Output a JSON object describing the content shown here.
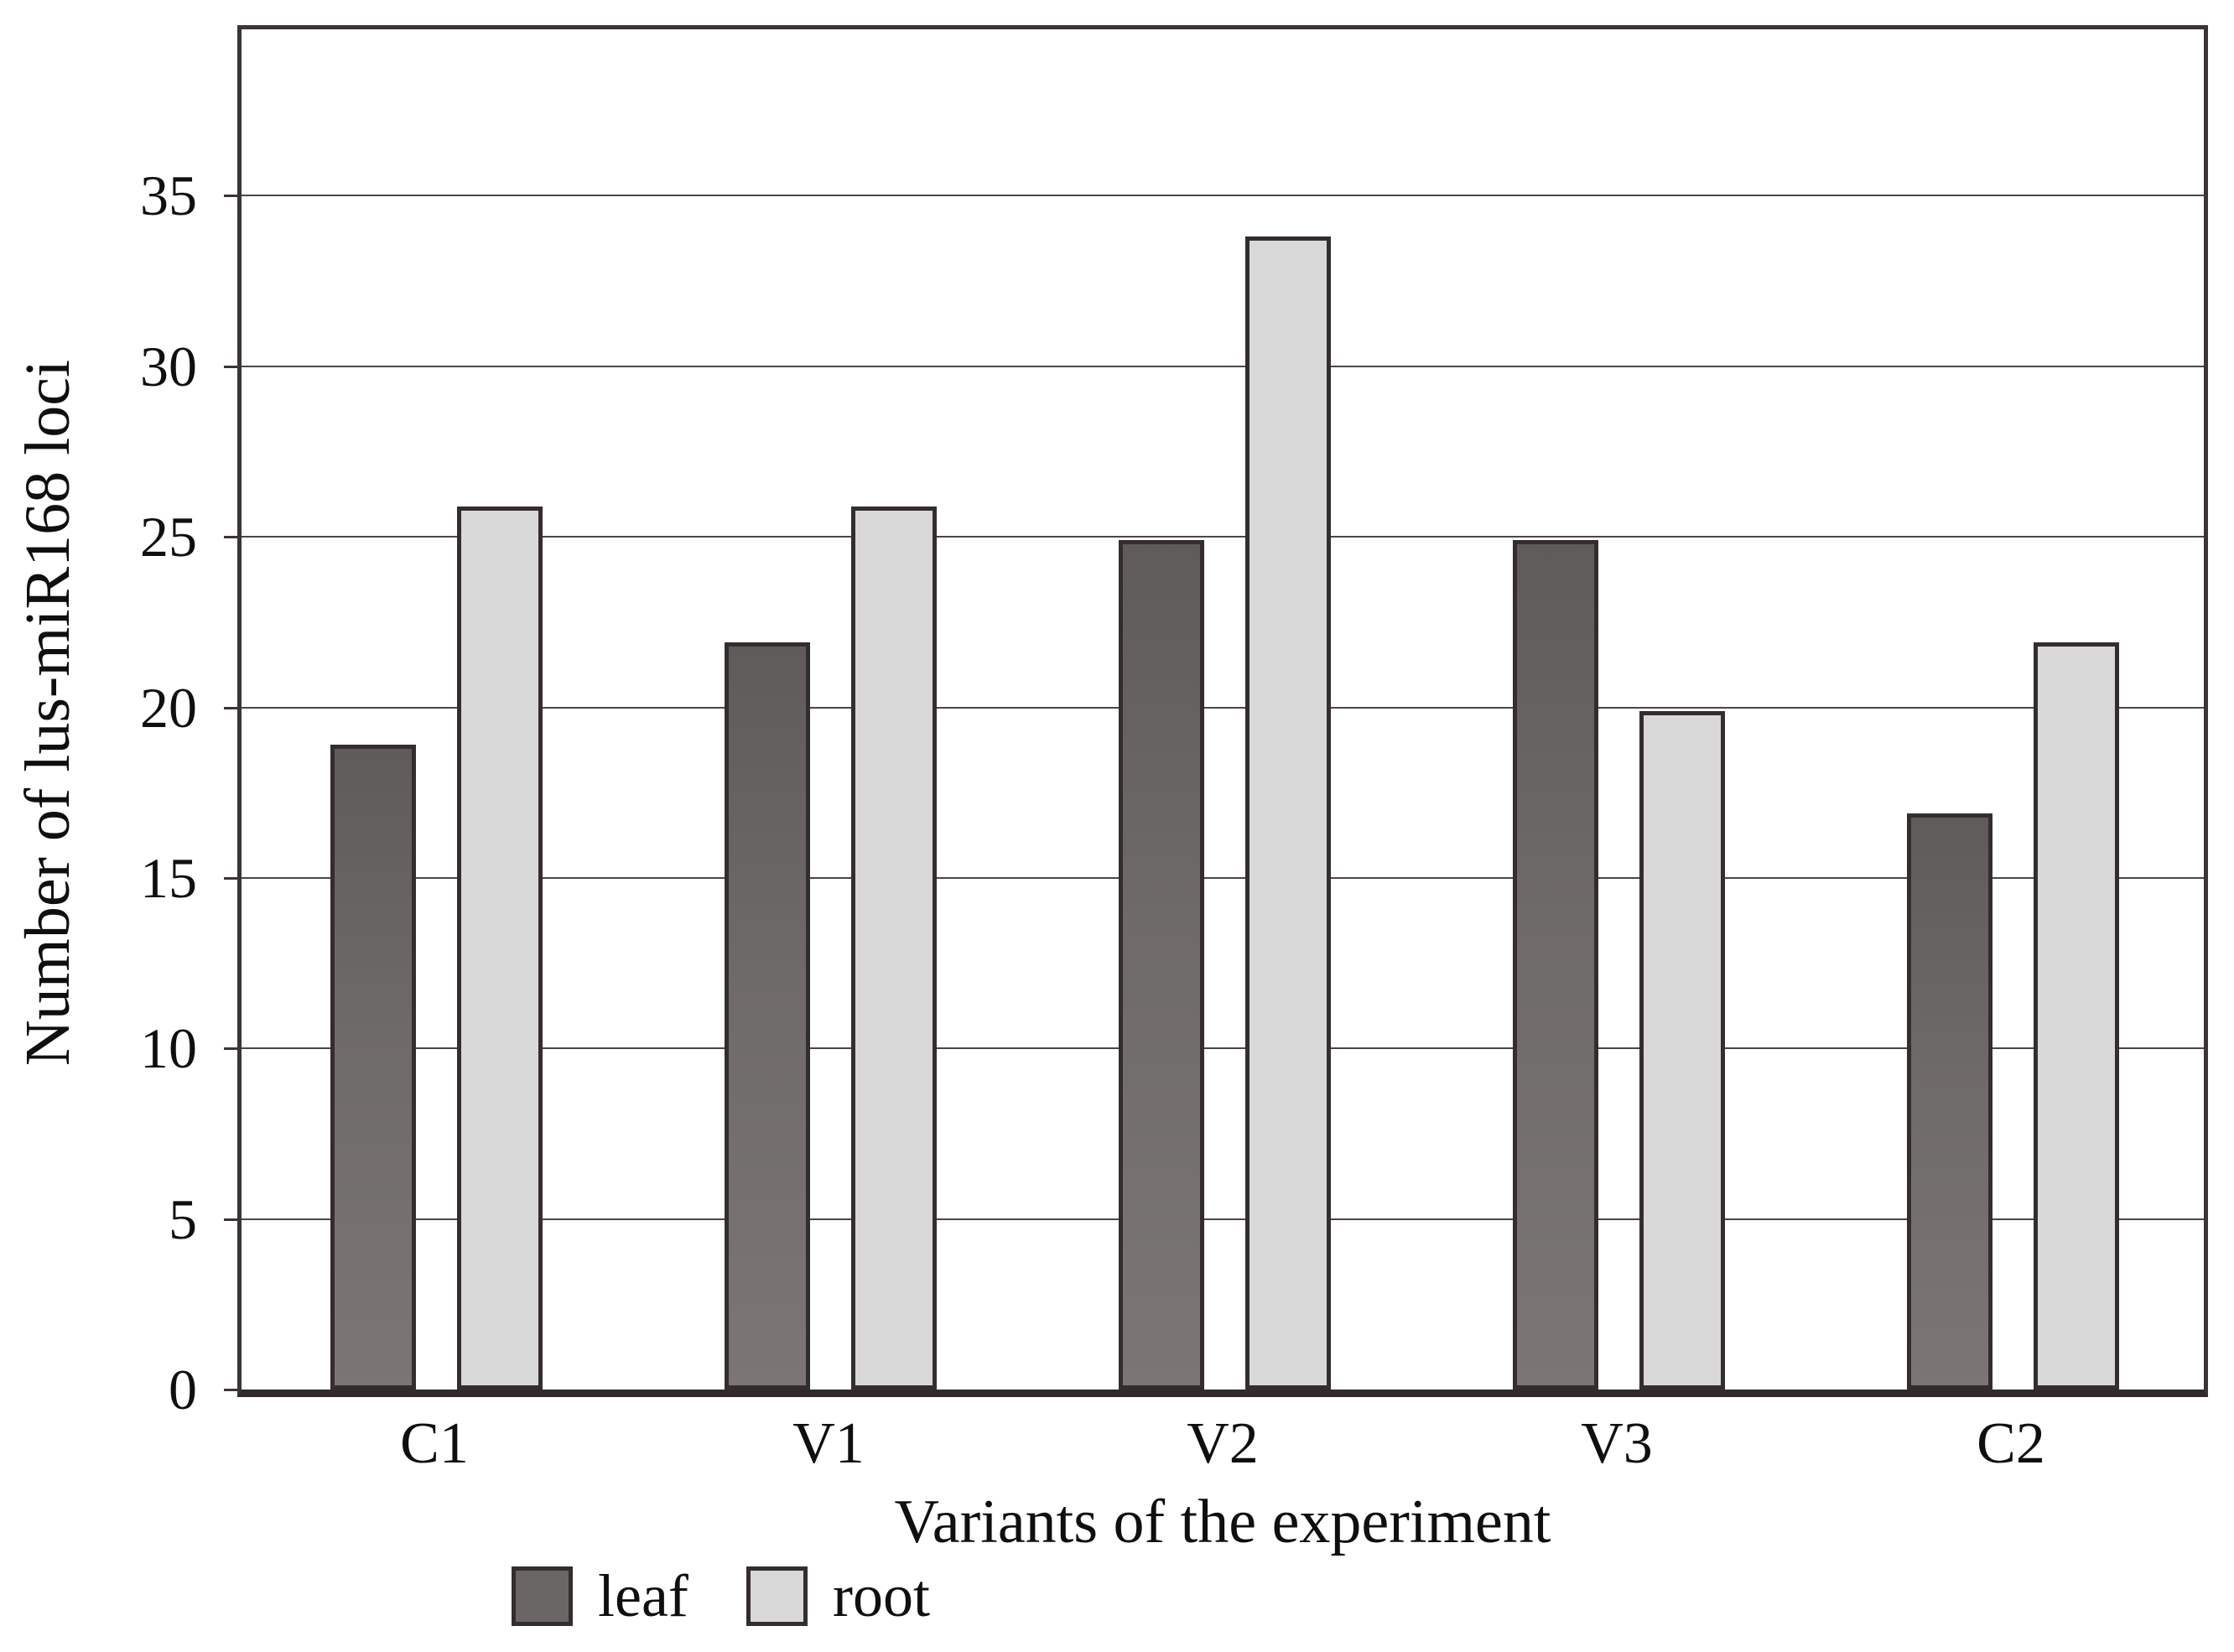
{
  "chart_data": {
    "type": "bar",
    "title": "",
    "xlabel": "Variants of the experiment",
    "ylabel": "Number of lus-miR168 loci",
    "categories": [
      "C1",
      "V1",
      "V2",
      "V3",
      "C2"
    ],
    "series": [
      {
        "name": "leaf",
        "color": "#6b6666",
        "values": [
          18.9,
          21.9,
          24.9,
          24.9,
          16.9
        ]
      },
      {
        "name": "root",
        "color": "#d9d8d8",
        "values": [
          25.9,
          25.9,
          33.8,
          19.9,
          21.9
        ]
      }
    ],
    "ylim": [
      0,
      40
    ],
    "yticks": [
      0,
      5,
      10,
      15,
      20,
      25,
      30,
      35
    ],
    "grid": true,
    "legend_position": "bottom-left",
    "colors": {
      "bar_border": "#332d2d",
      "gridline": "#4b4545",
      "frame": "#3a3434",
      "background": "#ffffff"
    }
  }
}
